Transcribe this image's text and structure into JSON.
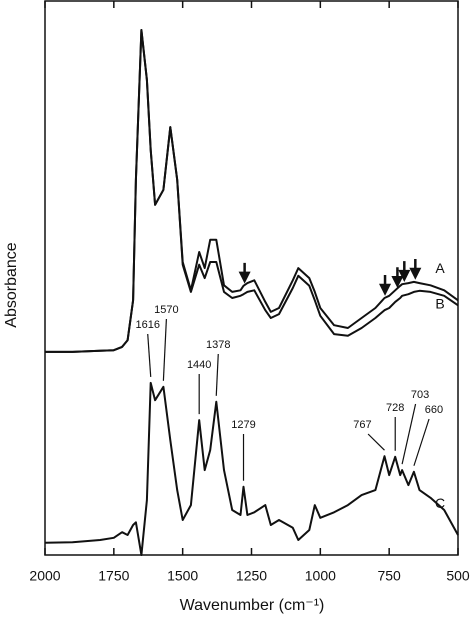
{
  "chart_data": {
    "type": "line",
    "xlabel": "Wavenumber (cm⁻¹)",
    "ylabel": "Absorbance",
    "xlim": [
      2000,
      500
    ],
    "ylim": [
      0,
      100
    ],
    "xticks": [
      2000,
      1750,
      1500,
      1250,
      1000,
      750,
      500
    ],
    "x": [
      2000,
      1900,
      1800,
      1750,
      1720,
      1700,
      1680,
      1670,
      1650,
      1630,
      1616,
      1600,
      1570,
      1545,
      1520,
      1500,
      1470,
      1440,
      1420,
      1400,
      1378,
      1350,
      1320,
      1290,
      1279,
      1265,
      1240,
      1200,
      1180,
      1150,
      1100,
      1080,
      1040,
      1020,
      1000,
      950,
      900,
      850,
      800,
      767,
      750,
      728,
      710,
      703,
      680,
      660,
      640,
      600,
      550,
      500
    ],
    "series": [
      {
        "name": "A",
        "color": "#111111",
        "values": [
          36.6,
          36.6,
          36.8,
          36.9,
          37.5,
          38.7,
          45.9,
          67.6,
          94.6,
          85.6,
          73.0,
          63.1,
          65.8,
          77.1,
          67.6,
          52.8,
          47.7,
          54.6,
          51.7,
          56.8,
          56.8,
          48.6,
          47.4,
          47.7,
          48.5,
          49.0,
          49.5,
          45.6,
          43.8,
          44.5,
          49.5,
          51.7,
          49.9,
          47.4,
          44.5,
          41.4,
          40.9,
          42.7,
          44.5,
          46.3,
          46.7,
          47.7,
          48.5,
          48.8,
          49.0,
          49.2,
          49.0,
          48.6,
          47.7,
          45.9
        ]
      },
      {
        "name": "B",
        "color": "#111111",
        "values": [
          36.6,
          36.6,
          36.8,
          36.9,
          37.5,
          38.7,
          45.9,
          67.6,
          94.6,
          85.6,
          73.0,
          63.1,
          65.8,
          77.1,
          67.6,
          52.3,
          47.4,
          52.3,
          49.9,
          52.8,
          52.8,
          47.4,
          46.3,
          46.7,
          47.0,
          47.4,
          47.7,
          44.1,
          42.7,
          43.4,
          48.1,
          50.3,
          48.5,
          45.9,
          43.1,
          39.8,
          39.5,
          40.9,
          42.7,
          44.1,
          44.5,
          45.6,
          46.3,
          46.7,
          47.0,
          47.4,
          47.6,
          47.4,
          46.7,
          45.0
        ]
      },
      {
        "name": "C",
        "color": "#111111",
        "values": [
          2.2,
          2.3,
          2.7,
          3.1,
          4.1,
          3.6,
          5.4,
          5.9,
          0,
          9.9,
          31.0,
          27.9,
          30.3,
          20.7,
          11.7,
          6.3,
          9.0,
          24.3,
          15.3,
          18.9,
          27.6,
          15.3,
          8.1,
          7.2,
          12.3,
          7.2,
          7.7,
          9.0,
          5.4,
          6.3,
          4.9,
          2.7,
          4.5,
          9.0,
          6.7,
          7.7,
          9.0,
          10.8,
          11.7,
          17.8,
          14.4,
          17.7,
          14.4,
          15.3,
          12.6,
          15.0,
          11.7,
          10.3,
          8.1,
          3.6
        ]
      }
    ],
    "peak_labels": [
      1616,
      1570,
      1440,
      1378,
      1279,
      767,
      728,
      703,
      660
    ],
    "arrows": [
      1275,
      765,
      720,
      695,
      655
    ]
  }
}
